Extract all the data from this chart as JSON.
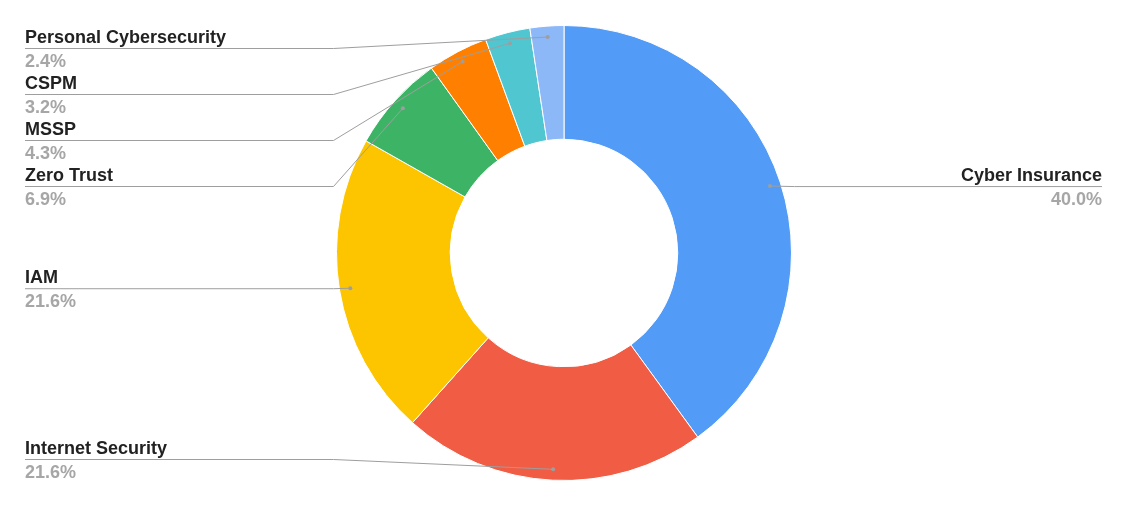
{
  "chart_data": {
    "type": "donut",
    "categories": [
      "Cyber Insurance",
      "Internet Security",
      "IAM",
      "Zero Trust",
      "MSSP",
      "CSPM",
      "Personal Cybersecurity"
    ],
    "values": [
      40.0,
      21.6,
      21.6,
      6.9,
      4.3,
      3.2,
      2.4
    ],
    "value_labels": [
      "40.0%",
      "21.6%",
      "21.6%",
      "6.9%",
      "4.3%",
      "3.2%",
      "2.4%"
    ],
    "colors": [
      "#529bf7",
      "#f05c44",
      "#fdc500",
      "#3db465",
      "#ff8000",
      "#50c6d0",
      "#8cb8f8"
    ]
  }
}
